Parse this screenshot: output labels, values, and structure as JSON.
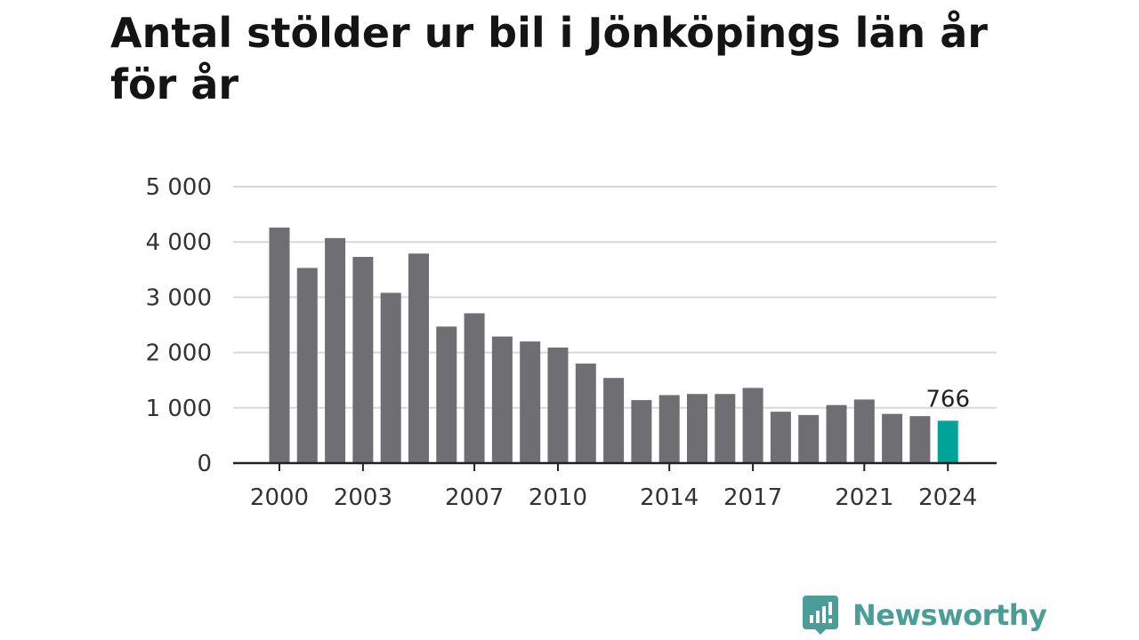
{
  "title": "Antal stölder ur bil i Jönköpings län år för år",
  "brand": {
    "name": "Newsworthy",
    "icon": "newsworthy-logo-icon"
  },
  "colors": {
    "bar": "#6f6e73",
    "highlight": "#00a398",
    "grid": "#d9d9d9",
    "axis": "#222222",
    "brand": "#4a9e97"
  },
  "chart_data": {
    "type": "bar",
    "title": "Antal stölder ur bil i Jönköpings län år för år",
    "xlabel": "",
    "ylabel": "",
    "ylim": [
      0,
      5000
    ],
    "grid": true,
    "y_ticks": [
      0,
      1000,
      2000,
      3000,
      4000,
      5000
    ],
    "y_tick_labels": [
      "0",
      "1 000",
      "2 000",
      "3 000",
      "4 000",
      "5 000"
    ],
    "x_tick_labels": [
      "2000",
      "2003",
      "2007",
      "2010",
      "2014",
      "2017",
      "2021",
      "2024"
    ],
    "categories": [
      2000,
      2001,
      2002,
      2003,
      2004,
      2005,
      2006,
      2007,
      2008,
      2009,
      2010,
      2011,
      2012,
      2013,
      2014,
      2015,
      2016,
      2017,
      2018,
      2019,
      2020,
      2021,
      2022,
      2023,
      2024
    ],
    "values": [
      4260,
      3530,
      4070,
      3730,
      3080,
      3790,
      2470,
      2710,
      2290,
      2200,
      2090,
      1800,
      1540,
      1140,
      1230,
      1250,
      1250,
      1360,
      930,
      870,
      1050,
      1150,
      890,
      850,
      766
    ],
    "highlight": {
      "category": 2024,
      "label": "766"
    }
  }
}
